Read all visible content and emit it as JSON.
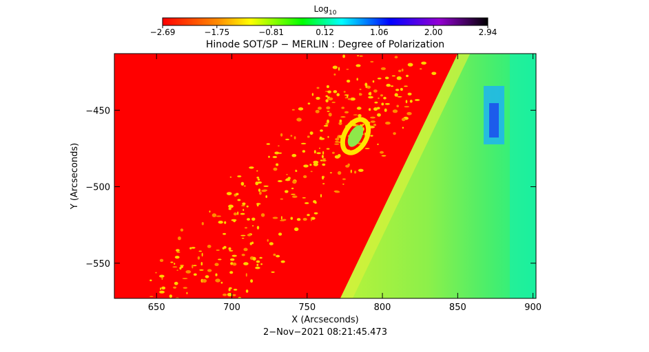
{
  "chart_data": {
    "type": "heatmap",
    "title": "Hinode SOT/SP − MERLIN : Degree of Polarization",
    "xlabel": "X (Arcseconds)",
    "ylabel": "Y (Arcseconds)",
    "xlim": [
      622,
      902
    ],
    "ylim": [
      -573,
      -413
    ],
    "x_ticks": [
      650,
      700,
      750,
      800,
      850,
      900
    ],
    "y_ticks": [
      -450,
      -500,
      -550
    ],
    "x_tick_labels": [
      "650",
      "700",
      "750",
      "800",
      "850",
      "900"
    ],
    "y_tick_labels": [
      "−450",
      "−500",
      "−550"
    ],
    "colorbar": {
      "label_main": "Log",
      "label_sub": "10",
      "range": [
        -2.69,
        2.94
      ],
      "ticks": [
        -2.69,
        -1.75,
        -0.81,
        0.12,
        1.06,
        2.0,
        2.94
      ],
      "tick_labels": [
        "−2.69",
        "−1.75",
        "−0.81",
        "0.12",
        "1.06",
        "2.00",
        "2.94"
      ],
      "colors": [
        "#ff0000",
        "#ffff00",
        "#00ff00",
        "#00ffff",
        "#0000ff",
        "#9400d3",
        "#000000"
      ]
    },
    "limb_line": [
      [
        772,
        -573
      ],
      [
        850,
        -413
      ]
    ],
    "timestamp": "2−Nov−2021 08:21:45.473",
    "grid": false
  }
}
